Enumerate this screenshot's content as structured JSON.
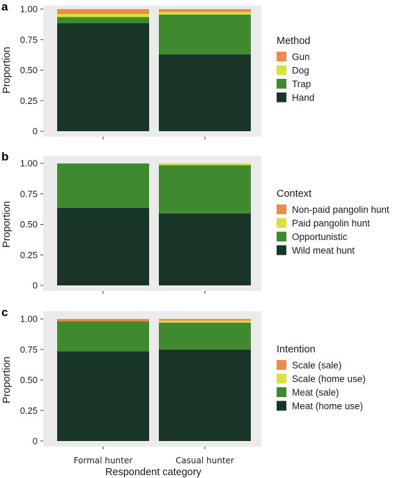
{
  "colors": {
    "orange": "#f08a4b",
    "yellow": "#d6e33a",
    "green": "#3f8a2f",
    "dark": "#193527",
    "panel_bg": "#ebebeb"
  },
  "xlabel": "Respondent category",
  "chart_data": [
    {
      "type": "bar",
      "stacked": true,
      "panel": "a",
      "categories": [
        "Formal hunter",
        "Casual hunter"
      ],
      "ylabel": "Proportion",
      "ylim": [
        0,
        1
      ],
      "yticks": [
        "0",
        "0.25",
        "0.50",
        "0.75",
        "1.00"
      ],
      "legend_title": "Method",
      "legend_position": "right",
      "series": [
        {
          "name": "Hand",
          "color": "#193527",
          "values": [
            0.885,
            0.63
          ]
        },
        {
          "name": "Trap",
          "color": "#3f8a2f",
          "values": [
            0.05,
            0.325
          ]
        },
        {
          "name": "Dog",
          "color": "#d6e33a",
          "values": [
            0.025,
            0.02
          ]
        },
        {
          "name": "Gun",
          "color": "#f08a4b",
          "values": [
            0.04,
            0.025
          ]
        }
      ]
    },
    {
      "type": "bar",
      "stacked": true,
      "panel": "b",
      "categories": [
        "Formal hunter",
        "Casual hunter"
      ],
      "ylabel": "Proportion",
      "ylim": [
        0,
        1
      ],
      "yticks": [
        "0",
        "0.25",
        "0.50",
        "0.75",
        "1.00"
      ],
      "legend_title": "Context",
      "legend_position": "right",
      "series": [
        {
          "name": "Wild meat hunt",
          "color": "#193527",
          "values": [
            0.635,
            0.59
          ]
        },
        {
          "name": "Opportunistic",
          "color": "#3f8a2f",
          "values": [
            0.363,
            0.395
          ]
        },
        {
          "name": "Paid pangolin hunt",
          "color": "#d6e33a",
          "values": [
            0.0,
            0.015
          ]
        },
        {
          "name": "Non-paid pangolin hunt",
          "color": "#f08a4b",
          "values": [
            0.002,
            0.0
          ]
        }
      ]
    },
    {
      "type": "bar",
      "stacked": true,
      "panel": "c",
      "categories": [
        "Formal hunter",
        "Casual hunter"
      ],
      "ylabel": "Proportion",
      "ylim": [
        0,
        1
      ],
      "yticks": [
        "0",
        "0.25",
        "0.50",
        "0.75",
        "1.00"
      ],
      "legend_title": "Intention",
      "legend_position": "right",
      "series": [
        {
          "name": "Meat (home use)",
          "color": "#193527",
          "values": [
            0.735,
            0.75
          ]
        },
        {
          "name": "Meat (sale)",
          "color": "#3f8a2f",
          "values": [
            0.245,
            0.22
          ]
        },
        {
          "name": "Scale (home use)",
          "color": "#d6e33a",
          "values": [
            0.0,
            0.015
          ]
        },
        {
          "name": "Scale (sale)",
          "color": "#f08a4b",
          "values": [
            0.02,
            0.015
          ]
        }
      ]
    }
  ]
}
